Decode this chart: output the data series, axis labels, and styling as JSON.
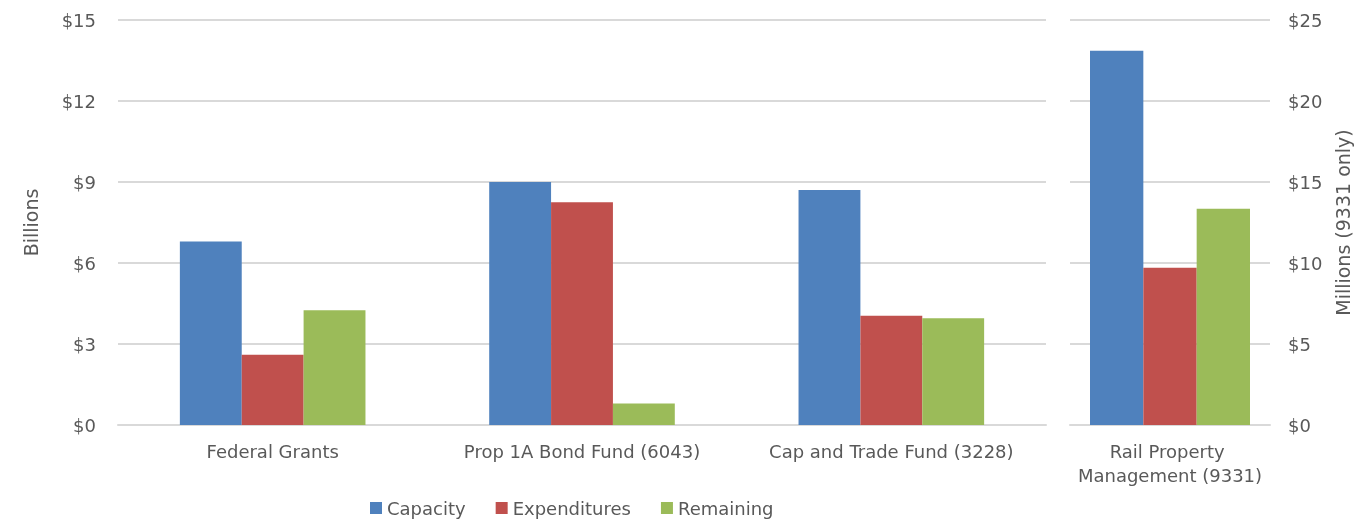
{
  "chart_data": [
    {
      "type": "bar",
      "ylabel": "Billions",
      "categories": [
        "Federal Grants",
        "Prop 1A Bond Fund (6043)",
        "Cap and Trade Fund (3228)"
      ],
      "series": [
        {
          "name": "Capacity",
          "color": "#4f81bd",
          "values": [
            6.8,
            9.0,
            8.7
          ]
        },
        {
          "name": "Expenditures",
          "color": "#c0504d",
          "values": [
            2.6,
            8.25,
            4.05
          ]
        },
        {
          "name": "Remaining",
          "color": "#9bbb59",
          "values": [
            4.25,
            0.8,
            3.95
          ]
        }
      ],
      "ylim": [
        0,
        15
      ],
      "yticks": [
        {
          "value": 0,
          "label": "$0"
        },
        {
          "value": 3,
          "label": "$3"
        },
        {
          "value": 6,
          "label": "$6"
        },
        {
          "value": 9,
          "label": "$9"
        },
        {
          "value": 12,
          "label": "$12"
        },
        {
          "value": 15,
          "label": "$15"
        }
      ],
      "grid": "y",
      "legend": "bottom"
    },
    {
      "type": "bar",
      "ylabel": "Millions (9331 only)",
      "categories": [
        "Rail Property Management (9331)"
      ],
      "series": [
        {
          "color": "#4f81bd",
          "values": [
            23.1
          ]
        },
        {
          "color": "#c0504d",
          "values": [
            9.7
          ]
        },
        {
          "color": "#9bbb59",
          "values": [
            13.35
          ]
        }
      ],
      "ylim": [
        0,
        25
      ],
      "yticks": [
        {
          "value": 0,
          "label": "$0"
        },
        {
          "value": 5,
          "label": "$5"
        },
        {
          "value": 10,
          "label": "$10"
        },
        {
          "value": 15,
          "label": "$15"
        },
        {
          "value": 20,
          "label": "$20"
        },
        {
          "value": 25,
          "label": "$25"
        }
      ],
      "grid": "y",
      "legend": false
    }
  ]
}
